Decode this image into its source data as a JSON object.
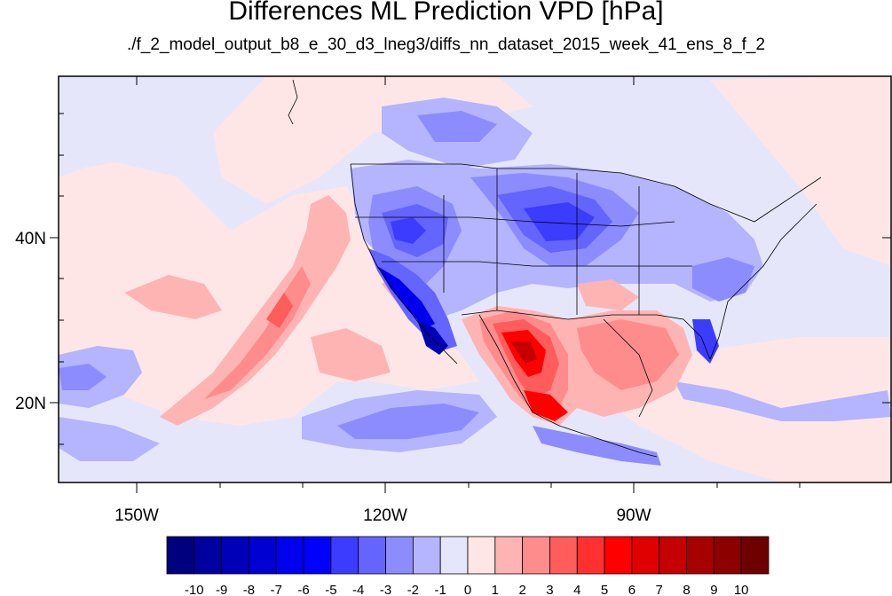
{
  "title": "Differences ML Prediction VPD [hPa]",
  "subtitle": "./f_2_model_output_b8_e_30_d3_lneg3/diffs_nn_dataset_2015_week_41_ens_8_f_2",
  "map": {
    "lat_labels": [
      "40N",
      "20N"
    ],
    "lon_labels": [
      "150W",
      "120W",
      "90W"
    ]
  },
  "colorbar": {
    "labels": [
      "-10",
      "-9",
      "-8",
      "-7",
      "-6",
      "-5",
      "-4",
      "-3",
      "-2",
      "-1",
      "0",
      "1",
      "2",
      "3",
      "4",
      "5",
      "6",
      "7",
      "8",
      "9",
      "10"
    ],
    "colors": [
      "#00007f",
      "#00009f",
      "#0000b8",
      "#0000d2",
      "#0000ee",
      "#0000ff",
      "#3c3cff",
      "#6464ff",
      "#8c8cff",
      "#b4b4ff",
      "#e6e6fa",
      "#ffe6e6",
      "#ffb4b4",
      "#ff8c8c",
      "#ff5c5c",
      "#ff3030",
      "#ff0000",
      "#e00000",
      "#c40000",
      "#a80000",
      "#8c0000",
      "#6e0000"
    ]
  }
}
